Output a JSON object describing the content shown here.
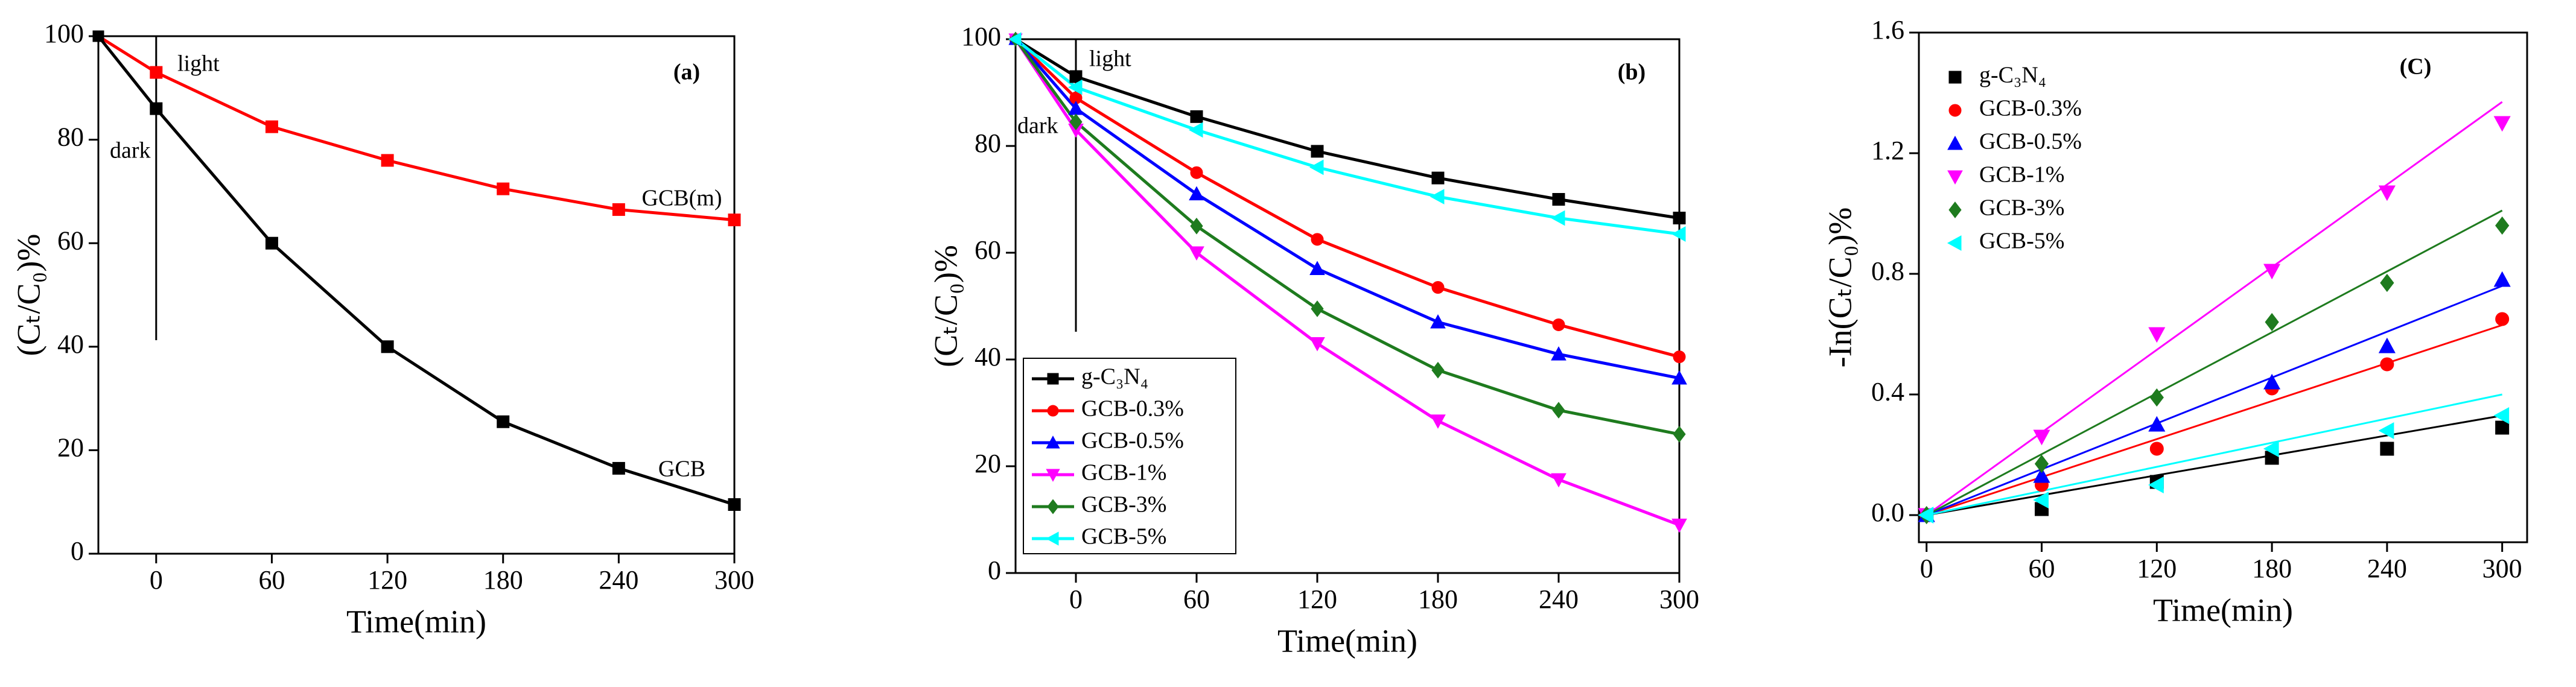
{
  "chart_data": [
    {
      "type": "line",
      "xlabel": "Time(min)",
      "ylabel": "(Cₜ/C₀)%",
      "x": [
        -30,
        0,
        60,
        120,
        180,
        240,
        300
      ],
      "xlim": [
        -30,
        300
      ],
      "xticks": [
        0,
        60,
        120,
        180,
        240,
        300
      ],
      "ylim": [
        0,
        100
      ],
      "yticks": [
        0,
        20,
        40,
        60,
        80,
        100
      ],
      "legend": "none",
      "series_labels": true,
      "annotations": [
        "light",
        "dark",
        "(a)"
      ],
      "series": [
        {
          "name": "GCB(m)",
          "color": "#ff0000",
          "marker": "square",
          "values": [
            100,
            93,
            82.5,
            76,
            70.5,
            66.5,
            64.5
          ]
        },
        {
          "name": "GCB",
          "color": "#000000",
          "marker": "square",
          "values": [
            100,
            86,
            60,
            40,
            25.5,
            16.5,
            9.5
          ]
        }
      ]
    },
    {
      "type": "line",
      "xlabel": "Time(min)",
      "ylabel": "(Cₜ/C₀)%",
      "x": [
        -30,
        0,
        60,
        120,
        180,
        240,
        300
      ],
      "xlim": [
        -30,
        300
      ],
      "xticks": [
        0,
        60,
        120,
        180,
        240,
        300
      ],
      "ylim": [
        0,
        100
      ],
      "yticks": [
        0,
        20,
        40,
        60,
        80,
        100
      ],
      "legend": "lower left",
      "series_labels": false,
      "annotations": [
        "light",
        "dark",
        "(b)"
      ],
      "series": [
        {
          "name": "g-C₃N₄",
          "color": "#000000",
          "marker": "square",
          "values": [
            100,
            93,
            85.5,
            79,
            74,
            70,
            66.5
          ]
        },
        {
          "name": "GCB-0.3%",
          "color": "#ff0000",
          "marker": "circle",
          "values": [
            100,
            89,
            75,
            62.5,
            53.5,
            46.5,
            40.5
          ]
        },
        {
          "name": "GCB-0.5%",
          "color": "#0000ff",
          "marker": "triangle-up",
          "values": [
            100,
            87,
            71,
            57,
            47,
            41,
            36.5
          ]
        },
        {
          "name": "GCB-1%",
          "color": "#ff00ff",
          "marker": "triangle-down",
          "values": [
            100,
            83,
            60,
            43,
            28.5,
            17.5,
            9
          ]
        },
        {
          "name": "GCB-3%",
          "color": "#1e7b1e",
          "marker": "diamond",
          "values": [
            100,
            84.5,
            65,
            49.5,
            38,
            30.5,
            26
          ]
        },
        {
          "name": "GCB-5%",
          "color": "#00ffff",
          "marker": "triangle-left",
          "values": [
            100,
            91,
            83,
            76,
            70.5,
            66.5,
            63.5
          ]
        }
      ]
    },
    {
      "type": "scatter",
      "xlabel": "Time(min)",
      "ylabel": "-In(Cₜ/C₀)%",
      "x": [
        0,
        60,
        120,
        180,
        240,
        300
      ],
      "fit_x": [
        0,
        300
      ],
      "xlim": [
        -4,
        313
      ],
      "xticks": [
        0,
        60,
        120,
        180,
        240,
        300
      ],
      "ylim": [
        -0.09,
        1.6
      ],
      "yticks": [
        {
          "value": 0,
          "label": "0.0"
        },
        0.4,
        0.8,
        1.2,
        1.6
      ],
      "legend": "upper left",
      "series_labels": false,
      "annotations": [
        "(C)"
      ],
      "series": [
        {
          "name": "g-C₃N₄",
          "color": "#000000",
          "marker": "square",
          "values": [
            0,
            0.02,
            0.11,
            0.19,
            0.22,
            0.29
          ],
          "fit": [
            0,
            0.33
          ]
        },
        {
          "name": "GCB-0.3%",
          "color": "#ff0000",
          "marker": "circle",
          "values": [
            0,
            0.1,
            0.22,
            0.42,
            0.5,
            0.65
          ],
          "fit": [
            0,
            0.63
          ]
        },
        {
          "name": "GCB-0.5%",
          "color": "#0000ff",
          "marker": "triangle-up",
          "values": [
            0,
            0.13,
            0.3,
            0.44,
            0.56,
            0.78
          ],
          "fit": [
            0,
            0.76
          ]
        },
        {
          "name": "GCB-1%",
          "color": "#ff00ff",
          "marker": "triangle-down",
          "values": [
            0,
            0.26,
            0.6,
            0.81,
            1.07,
            1.3
          ],
          "fit": [
            0,
            1.37
          ]
        },
        {
          "name": "GCB-3%",
          "color": "#1e7b1e",
          "marker": "diamond",
          "values": [
            0,
            0.17,
            0.39,
            0.64,
            0.77,
            0.96
          ],
          "fit": [
            0,
            1.01
          ]
        },
        {
          "name": "GCB-5%",
          "color": "#00ffff",
          "marker": "triangle-left",
          "values": [
            0,
            0.05,
            0.1,
            0.22,
            0.28,
            0.33
          ],
          "fit": [
            0,
            0.4
          ]
        }
      ]
    }
  ]
}
